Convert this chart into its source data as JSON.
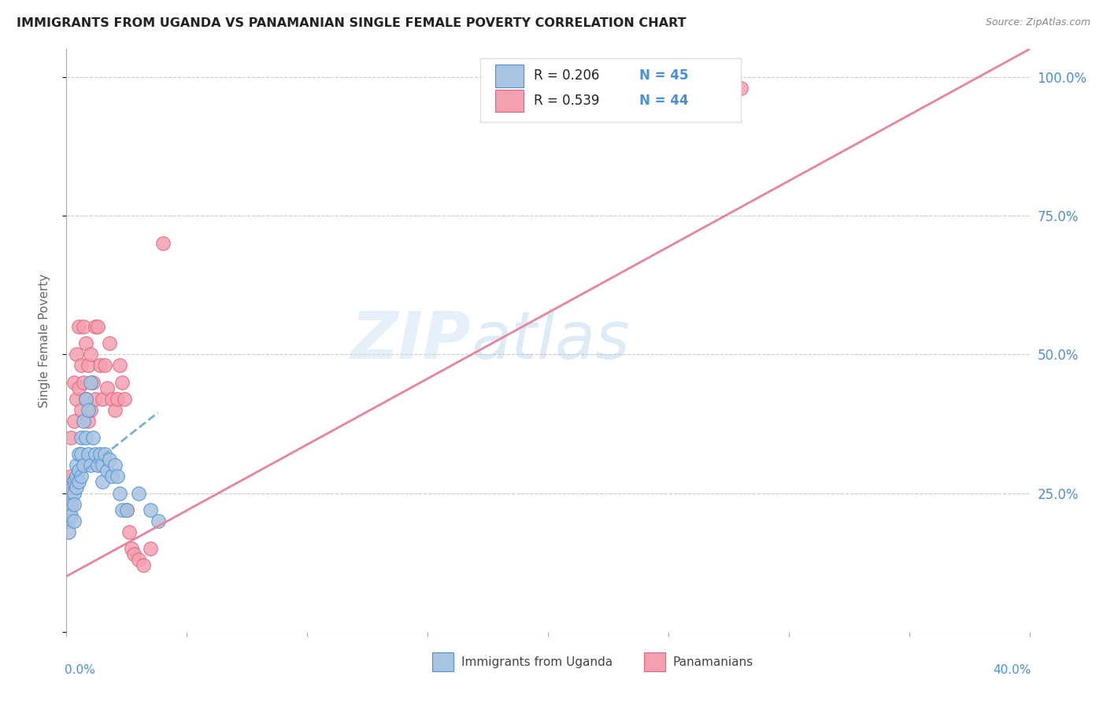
{
  "title": "IMMIGRANTS FROM UGANDA VS PANAMANIAN SINGLE FEMALE POVERTY CORRELATION CHART",
  "source": "Source: ZipAtlas.com",
  "ylabel": "Single Female Poverty",
  "xlim": [
    0.0,
    0.4
  ],
  "ylim": [
    0.0,
    1.05
  ],
  "color_blue": "#a8c4e0",
  "color_pink": "#f4a0b0",
  "color_blue_dark": "#4a90d9",
  "color_pink_dark": "#e8607a",
  "color_trendline_blue": "#7ab0d8",
  "color_trendline_pink": "#e8849a",
  "watermark": "ZIPAtlas",
  "legend_r1": "R = 0.206",
  "legend_n1": "N = 45",
  "legend_r2": "R = 0.539",
  "legend_n2": "N = 44",
  "uganda_x": [
    0.001,
    0.001,
    0.001,
    0.002,
    0.002,
    0.002,
    0.003,
    0.003,
    0.003,
    0.003,
    0.004,
    0.004,
    0.004,
    0.005,
    0.005,
    0.005,
    0.006,
    0.006,
    0.006,
    0.007,
    0.007,
    0.008,
    0.008,
    0.009,
    0.009,
    0.01,
    0.01,
    0.011,
    0.012,
    0.013,
    0.014,
    0.015,
    0.015,
    0.016,
    0.017,
    0.018,
    0.019,
    0.02,
    0.021,
    0.022,
    0.023,
    0.025,
    0.03,
    0.035,
    0.038
  ],
  "uganda_y": [
    0.22,
    0.2,
    0.18,
    0.25,
    0.23,
    0.21,
    0.27,
    0.25,
    0.23,
    0.2,
    0.3,
    0.28,
    0.26,
    0.32,
    0.29,
    0.27,
    0.35,
    0.32,
    0.28,
    0.38,
    0.3,
    0.42,
    0.35,
    0.4,
    0.32,
    0.45,
    0.3,
    0.35,
    0.32,
    0.3,
    0.32,
    0.3,
    0.27,
    0.32,
    0.29,
    0.31,
    0.28,
    0.3,
    0.28,
    0.25,
    0.22,
    0.22,
    0.25,
    0.22,
    0.2
  ],
  "panama_x": [
    0.001,
    0.001,
    0.002,
    0.002,
    0.003,
    0.003,
    0.004,
    0.004,
    0.005,
    0.005,
    0.006,
    0.006,
    0.007,
    0.007,
    0.008,
    0.008,
    0.009,
    0.009,
    0.01,
    0.01,
    0.011,
    0.012,
    0.012,
    0.013,
    0.014,
    0.015,
    0.016,
    0.017,
    0.018,
    0.019,
    0.02,
    0.021,
    0.022,
    0.023,
    0.024,
    0.025,
    0.026,
    0.027,
    0.028,
    0.03,
    0.032,
    0.035,
    0.04,
    0.28
  ],
  "panama_y": [
    0.27,
    0.24,
    0.35,
    0.28,
    0.45,
    0.38,
    0.5,
    0.42,
    0.55,
    0.44,
    0.48,
    0.4,
    0.55,
    0.45,
    0.52,
    0.42,
    0.48,
    0.38,
    0.5,
    0.4,
    0.45,
    0.55,
    0.42,
    0.55,
    0.48,
    0.42,
    0.48,
    0.44,
    0.52,
    0.42,
    0.4,
    0.42,
    0.48,
    0.45,
    0.42,
    0.22,
    0.18,
    0.15,
    0.14,
    0.13,
    0.12,
    0.15,
    0.7,
    0.98
  ],
  "uganda_trend_x": [
    0.0,
    0.038
  ],
  "uganda_trend_y": [
    0.265,
    0.395
  ],
  "panama_trend_x": [
    0.0,
    0.4
  ],
  "panama_trend_y": [
    0.1,
    1.05
  ]
}
